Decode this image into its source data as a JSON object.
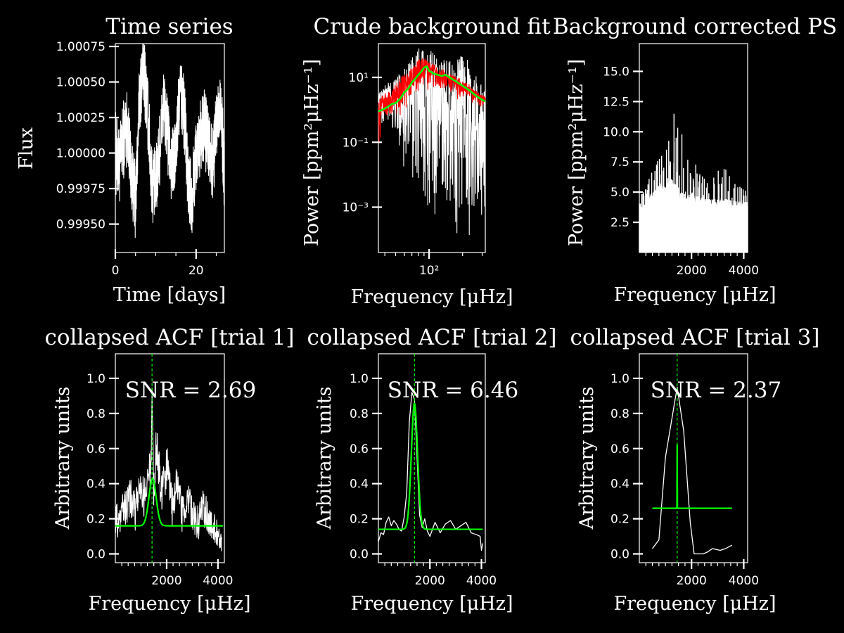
{
  "colors": {
    "background": "#000000",
    "foreground": "#ffffff",
    "fit": "#00ff00",
    "raw_spectrum": "#ff0000"
  },
  "chart_data": [
    {
      "type": "line",
      "title": "Time series",
      "xlabel": "Time [days]",
      "ylabel": "Flux",
      "xscale": "linear",
      "yscale": "linear",
      "xlim": [
        0,
        27
      ],
      "ylim": [
        0.9993,
        1.00077
      ],
      "xticks": [
        0,
        20
      ],
      "xtick_labels": [
        "0",
        "20"
      ],
      "yticks": [
        0.9995,
        0.99975,
        1.0,
        1.00025,
        1.0005,
        1.00075
      ],
      "ytick_labels": [
        "0.99950",
        "0.99975",
        "1.00000",
        "1.00025",
        "1.00050",
        "1.00075"
      ],
      "series": [
        {
          "color": "#ffffff",
          "x": [
            0,
            1,
            2,
            3,
            4,
            5,
            6,
            7,
            8,
            9,
            10,
            11,
            12,
            13,
            14,
            15,
            16,
            17,
            18,
            19,
            20,
            21,
            22,
            23,
            24,
            25,
            26,
            27
          ],
          "y": [
            1.0,
            0.9999,
            1.0001,
            1.0002,
            0.99985,
            0.99965,
            1.0004,
            1.0006,
            1.0003,
            0.9998,
            0.99975,
            1.00005,
            1.00035,
            1.0001,
            0.9999,
            1.0,
            1.00045,
            1.0003,
            0.9998,
            0.9997,
            1.0,
            1.0001,
            1.0002,
            1.00005,
            0.9999,
            1.00015,
            1.0004,
            0.99985
          ],
          "scatter": [
            0.00035,
            0.0003,
            0.00032,
            0.0003,
            0.00028,
            0.0003,
            0.00028,
            0.0003,
            0.0003,
            0.00032,
            0.0003,
            0.0003,
            0.00028,
            0.0003,
            0.0003,
            0.00028,
            0.0003,
            0.00032,
            0.0003,
            0.0003,
            0.00028,
            0.0003,
            0.0003,
            0.00032,
            0.0003,
            0.0003,
            0.00028,
            0.0003
          ]
        }
      ]
    },
    {
      "type": "line",
      "title": "Crude background fit",
      "xlabel": "Frequency [μHz]",
      "ylabel": "Power [ppm²μHz⁻¹]",
      "xscale": "log",
      "yscale": "log",
      "xlim": [
        35,
        320
      ],
      "ylim": [
        4e-05,
        110
      ],
      "xticks": [
        100
      ],
      "xtick_labels": [
        "10²"
      ],
      "yticks": [
        0.001,
        0.1,
        10
      ],
      "ytick_labels": [
        "10⁻³",
        "10⁻¹",
        "10¹"
      ],
      "series": [
        {
          "color": "#ffffff",
          "x": [
            35,
            40,
            45,
            50,
            55,
            60,
            65,
            70,
            75,
            80,
            85,
            90,
            95,
            100,
            110,
            120,
            130,
            140,
            160,
            180,
            200,
            220,
            250,
            280,
            320
          ],
          "upper": [
            3,
            6,
            8,
            10,
            14,
            20,
            25,
            40,
            60,
            80,
            90,
            90,
            85,
            70,
            60,
            50,
            45,
            40,
            35,
            40,
            50,
            35,
            20,
            10,
            5
          ],
          "lower": [
            0.3,
            0.2,
            0.1,
            0.05,
            0.02,
            0.01,
            0.005,
            0.003,
            0.002,
            0.001,
            0.0008,
            0.0005,
            0.0004,
            0.0003,
            0.0003,
            0.0004,
            0.0003,
            0.0002,
            0.0002,
            0.0001,
            0.0001,
            5e-05,
            5e-05,
            4e-05,
            4e-05
          ]
        },
        {
          "color": "#ff0000",
          "x": [
            35,
            38,
            42,
            46,
            50,
            55,
            60,
            65,
            70,
            75,
            80,
            85,
            90,
            95,
            100,
            110,
            120,
            130,
            140,
            160,
            180,
            200,
            230,
            260,
            290,
            320
          ],
          "upper": [
            2,
            3,
            3.5,
            4,
            6,
            10,
            12,
            15,
            20,
            25,
            35,
            40,
            45,
            40,
            30,
            25,
            20,
            18,
            15,
            12,
            10,
            8,
            6,
            4,
            3,
            2.5
          ],
          "lower": [
            0.05,
            0.2,
            0.3,
            0.4,
            0.5,
            0.6,
            0.8,
            1,
            1.5,
            2,
            3,
            4,
            4,
            3,
            3,
            4,
            4,
            3,
            3,
            2.5,
            2,
            1.8,
            1.5,
            1.4,
            1.2,
            1.2
          ]
        },
        {
          "color": "#00ff00",
          "x": [
            35,
            38,
            42,
            46,
            50,
            55,
            60,
            65,
            70,
            75,
            80,
            85,
            90,
            95,
            100,
            110,
            120,
            130,
            140,
            160,
            180,
            200,
            230,
            260,
            290,
            320
          ],
          "y": [
            0.9,
            1.0,
            1.2,
            1.5,
            1.6,
            2.2,
            3.5,
            4.5,
            7,
            9,
            12,
            15,
            20,
            22,
            16,
            13,
            12,
            11,
            12,
            9,
            7,
            5.5,
            4,
            2.8,
            2.2,
            1.8
          ]
        }
      ]
    },
    {
      "type": "bar",
      "title": "Background corrected PS",
      "xlabel": "Frequency [μHz]",
      "ylabel": "Power [ppm²μHz⁻¹]",
      "xscale": "linear",
      "yscale": "linear",
      "xlim": [
        0,
        4150
      ],
      "ylim": [
        0,
        17.3
      ],
      "xticks": [
        2000,
        4000
      ],
      "xtick_labels": [
        "2000",
        "4000"
      ],
      "yticks": [
        2.5,
        5.0,
        7.5,
        10.0,
        12.5,
        15.0
      ],
      "ytick_labels": [
        "2.5",
        "5.0",
        "7.5",
        "10.0",
        "12.5",
        "15.0"
      ],
      "series": [
        {
          "color": "#ffffff",
          "x": [
            0,
            200,
            400,
            600,
            800,
            1000,
            1200,
            1400,
            1600,
            1800,
            2000,
            2200,
            2400,
            2600,
            2800,
            3000,
            3200,
            3400,
            3600,
            3800,
            4000,
            4150
          ],
          "floor": [
            3.8,
            4.2,
            4.8,
            5.2,
            5.8,
            5.5,
            6.2,
            5.8,
            5.0,
            4.8,
            4.9,
            4.7,
            4.6,
            4.5,
            4.4,
            4.5,
            4.5,
            4.4,
            4.3,
            4.3,
            4.2,
            4.2
          ],
          "peak": [
            4.5,
            5.5,
            6.5,
            7.5,
            8.0,
            9.0,
            10.5,
            13.8,
            10.5,
            8.0,
            7.0,
            7.5,
            6.5,
            6.0,
            6.5,
            7.0,
            7.8,
            6.5,
            6.0,
            5.5,
            5.5,
            5.0
          ]
        }
      ]
    },
    {
      "type": "line",
      "title": "collapsed ACF [trial 1]",
      "xlabel": "Frequency [μHz]",
      "ylabel": "Arbitrary units",
      "annotation": "SNR = 2.69",
      "xscale": "linear",
      "yscale": "linear",
      "xlim": [
        0,
        4250
      ],
      "ylim": [
        -0.05,
        1.14
      ],
      "xticks": [
        2000,
        4000
      ],
      "xtick_labels": [
        "2000",
        "4000"
      ],
      "yticks": [
        0.0,
        0.2,
        0.4,
        0.6,
        0.8,
        1.0
      ],
      "ytick_labels": [
        "0.0",
        "0.2",
        "0.4",
        "0.6",
        "0.8",
        "1.0"
      ],
      "vline": 1430,
      "series": [
        {
          "color": "#ffffff",
          "x": [
            0,
            200,
            400,
            600,
            800,
            1000,
            1200,
            1300,
            1400,
            1430,
            1500,
            1600,
            1800,
            2000,
            2200,
            2400,
            2600,
            2800,
            3000,
            3200,
            3400,
            3600,
            3800,
            4000,
            4150
          ],
          "y": [
            0.15,
            0.2,
            0.25,
            0.3,
            0.22,
            0.35,
            0.3,
            0.4,
            0.5,
            0.95,
            0.35,
            0.6,
            0.3,
            0.5,
            0.25,
            0.4,
            0.2,
            0.3,
            0.22,
            0.15,
            0.25,
            0.2,
            0.15,
            0.1,
            0.05
          ],
          "scatter": [
            0.15,
            0.15,
            0.15,
            0.18,
            0.18,
            0.18,
            0.18,
            0.18,
            0.18,
            0.1,
            0.18,
            0.18,
            0.18,
            0.18,
            0.18,
            0.15,
            0.15,
            0.15,
            0.15,
            0.15,
            0.15,
            0.15,
            0.12,
            0.1,
            0.08
          ]
        },
        {
          "color": "#00ff00",
          "fit": "gaussian",
          "baseline": 0.16,
          "amplitude": 0.27,
          "center": 1450,
          "sigma": 140,
          "xrange": [
            0,
            4200
          ]
        }
      ]
    },
    {
      "type": "line",
      "title": "collapsed ACF [trial 2]",
      "xlabel": "Frequency [μHz]",
      "ylabel": "Arbitrary units",
      "annotation": "SNR = 6.46",
      "xscale": "linear",
      "yscale": "linear",
      "xlim": [
        0,
        4150
      ],
      "ylim": [
        -0.05,
        1.14
      ],
      "xticks": [
        2000,
        4000
      ],
      "xtick_labels": [
        "2000",
        "4000"
      ],
      "yticks": [
        0.0,
        0.2,
        0.4,
        0.6,
        0.8,
        1.0
      ],
      "ytick_labels": [
        "0.0",
        "0.2",
        "0.4",
        "0.6",
        "0.8",
        "1.0"
      ],
      "vline": 1400,
      "series": [
        {
          "color": "#ffffff",
          "x": [
            0,
            100,
            200,
            300,
            400,
            500,
            600,
            700,
            800,
            900,
            1000,
            1100,
            1200,
            1300,
            1400,
            1500,
            1600,
            1700,
            1800,
            1900,
            2000,
            2200,
            2400,
            2600,
            2800,
            3000,
            3200,
            3400,
            3600,
            3800,
            3950,
            4000,
            4050
          ],
          "y": [
            0.07,
            0.12,
            0.11,
            0.18,
            0.21,
            0.16,
            0.19,
            0.17,
            0.14,
            0.13,
            0.21,
            0.35,
            0.75,
            0.92,
            0.88,
            0.55,
            0.22,
            0.15,
            0.2,
            0.13,
            0.1,
            0.18,
            0.12,
            0.17,
            0.19,
            0.14,
            0.16,
            0.18,
            0.12,
            0.11,
            0.1,
            0.02,
            0.06
          ]
        },
        {
          "color": "#00ff00",
          "fit": "gaussian",
          "baseline": 0.14,
          "amplitude": 0.72,
          "center": 1400,
          "sigma": 120,
          "xrange": [
            0,
            4050
          ]
        }
      ]
    },
    {
      "type": "line",
      "title": "collapsed ACF [trial 3]",
      "xlabel": "Frequency [μHz]",
      "ylabel": "Arbitrary units",
      "annotation": "SNR = 2.37",
      "xscale": "linear",
      "yscale": "linear",
      "xlim": [
        0,
        4150
      ],
      "ylim": [
        -0.05,
        1.14
      ],
      "xticks": [
        2000,
        4000
      ],
      "xtick_labels": [
        "2000",
        "4000"
      ],
      "yticks": [
        0.0,
        0.2,
        0.4,
        0.6,
        0.8,
        1.0
      ],
      "ytick_labels": [
        "0.0",
        "0.2",
        "0.4",
        "0.6",
        "0.8",
        "1.0"
      ],
      "vline": 1450,
      "series": [
        {
          "color": "#ffffff",
          "x": [
            500,
            750,
            1000,
            1450,
            1700,
            1950,
            2100,
            2450,
            2600,
            2800,
            3100,
            3300,
            3550
          ],
          "y": [
            0.03,
            0.08,
            0.55,
            0.95,
            0.7,
            0.18,
            0.0,
            0.0,
            0.01,
            0.03,
            0.02,
            0.03,
            0.05
          ]
        },
        {
          "color": "#00ff00",
          "fit": "gaussian",
          "baseline": 0.26,
          "amplitude": 0.36,
          "center": 1450,
          "sigma": 4,
          "xrange": [
            500,
            3550
          ]
        }
      ]
    }
  ]
}
